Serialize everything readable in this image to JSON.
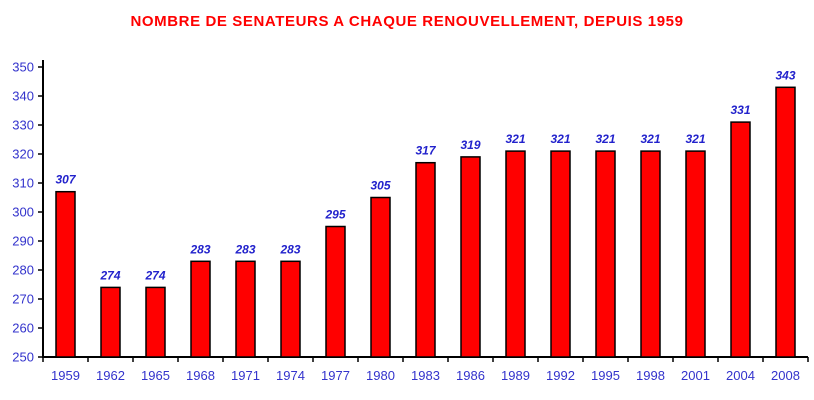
{
  "chart_data": {
    "type": "bar",
    "title": "NOMBRE DE SENATEURS A CHAQUE RENOUVELLEMENT, DEPUIS 1959",
    "categories": [
      "1959",
      "1962",
      "1965",
      "1968",
      "1971",
      "1974",
      "1977",
      "1980",
      "1983",
      "1986",
      "1989",
      "1992",
      "1995",
      "1998",
      "2001",
      "2004",
      "2008"
    ],
    "values": [
      307,
      274,
      274,
      283,
      283,
      283,
      295,
      305,
      317,
      319,
      321,
      321,
      321,
      321,
      321,
      331,
      343
    ],
    "xlabel": "",
    "ylabel": "",
    "ylim": [
      250,
      350
    ],
    "y_ticks": [
      250,
      260,
      270,
      280,
      290,
      300,
      310,
      320,
      330,
      340,
      350
    ],
    "grid": false,
    "legend": "none",
    "value_labels_shown": true,
    "colors": {
      "title": "#FF0000",
      "bar_fill": "#FF0000",
      "bar_border": "#000000",
      "value_label": "#2222CC",
      "tick_label": "#3333CC",
      "axis_line": "#000000",
      "background": "#FFFFFF"
    }
  }
}
